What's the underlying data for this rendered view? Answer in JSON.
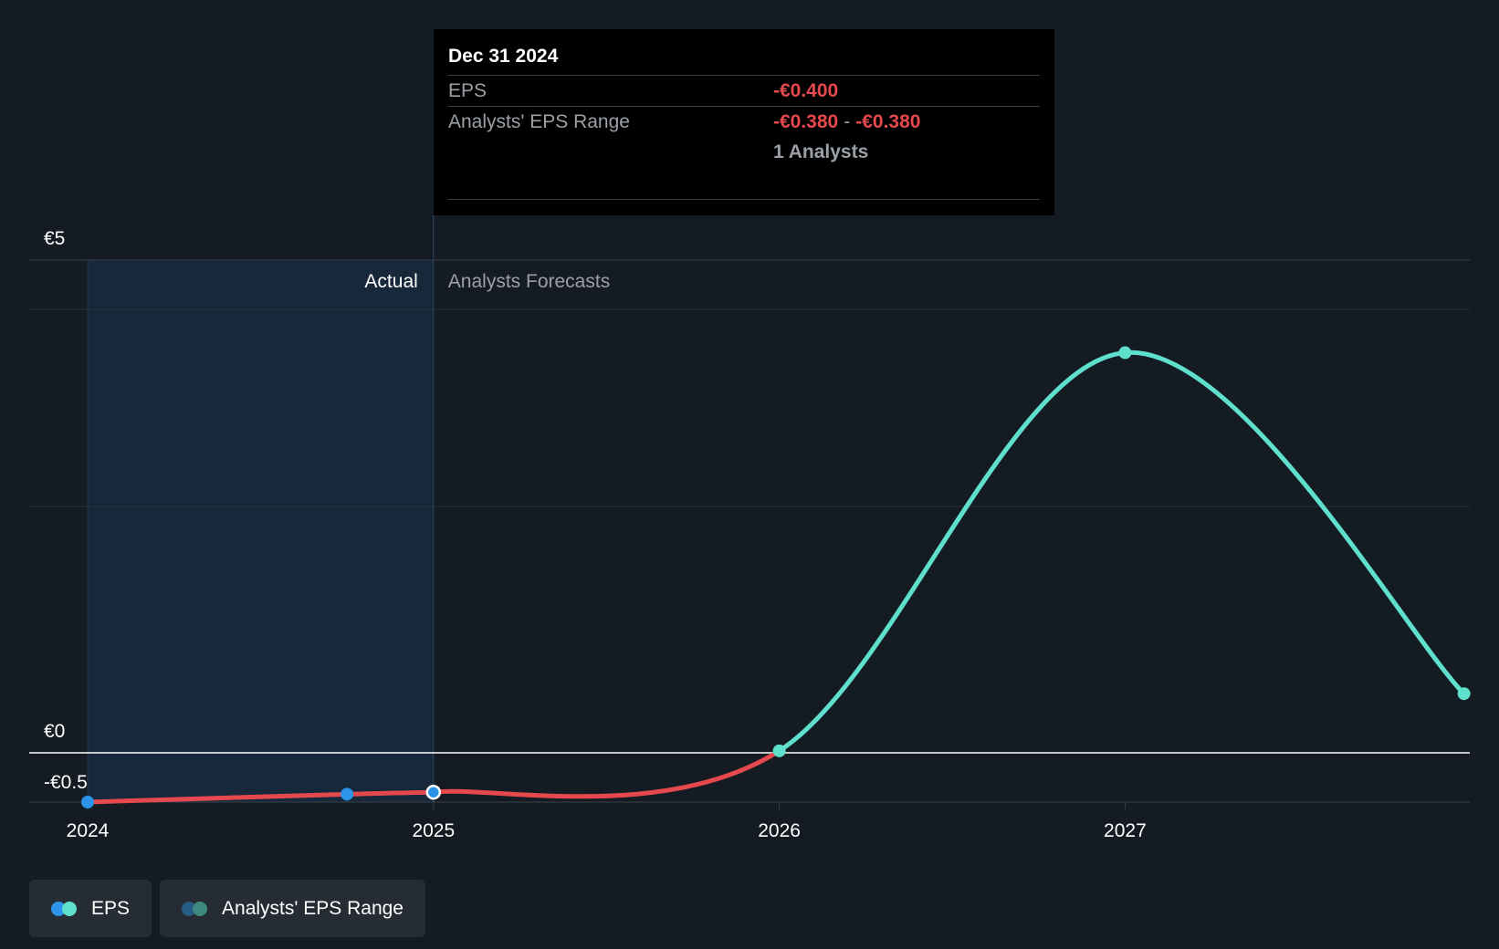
{
  "chart_data": {
    "type": "line",
    "title": "",
    "y_tick_labels": [
      "€5",
      "€0",
      "-€0.5"
    ],
    "ylim": [
      -0.5,
      5
    ],
    "x_tick_labels": [
      "2024",
      "2025",
      "2026",
      "2027"
    ],
    "xlim": [
      2024,
      2028
    ],
    "section_labels": {
      "actual": "Actual",
      "forecast": "Analysts Forecasts"
    },
    "series": [
      {
        "name": "EPS",
        "points": [
          {
            "x": 2024.0,
            "y": -0.5
          },
          {
            "x": 2024.75,
            "y": -0.42
          },
          {
            "x": 2025.0,
            "y": -0.4
          }
        ]
      },
      {
        "name": "Analysts' EPS Range",
        "points": [
          {
            "x": 2025.0,
            "y": -0.4
          },
          {
            "x": 2026.0,
            "y": 0.02
          },
          {
            "x": 2027.0,
            "y": 4.06
          },
          {
            "x": 2027.98,
            "y": 0.6
          }
        ]
      }
    ],
    "colors": {
      "negative_line": "#e5484d",
      "positive_line": "#5fe0cc",
      "actual_dot": "#2c93e8",
      "forecast_dot": "#5fe0cc",
      "actual_region": "#16283a"
    }
  },
  "tooltip": {
    "date": "Dec 31 2024",
    "eps_label": "EPS",
    "eps_value": "-€0.400",
    "range_label": "Analysts' EPS Range",
    "range_low": "-€0.380",
    "range_sep": "-",
    "range_high": "-€0.380",
    "analysts": "1 Analysts"
  },
  "legend": {
    "eps_label": "EPS",
    "range_label": "Analysts' EPS Range"
  }
}
